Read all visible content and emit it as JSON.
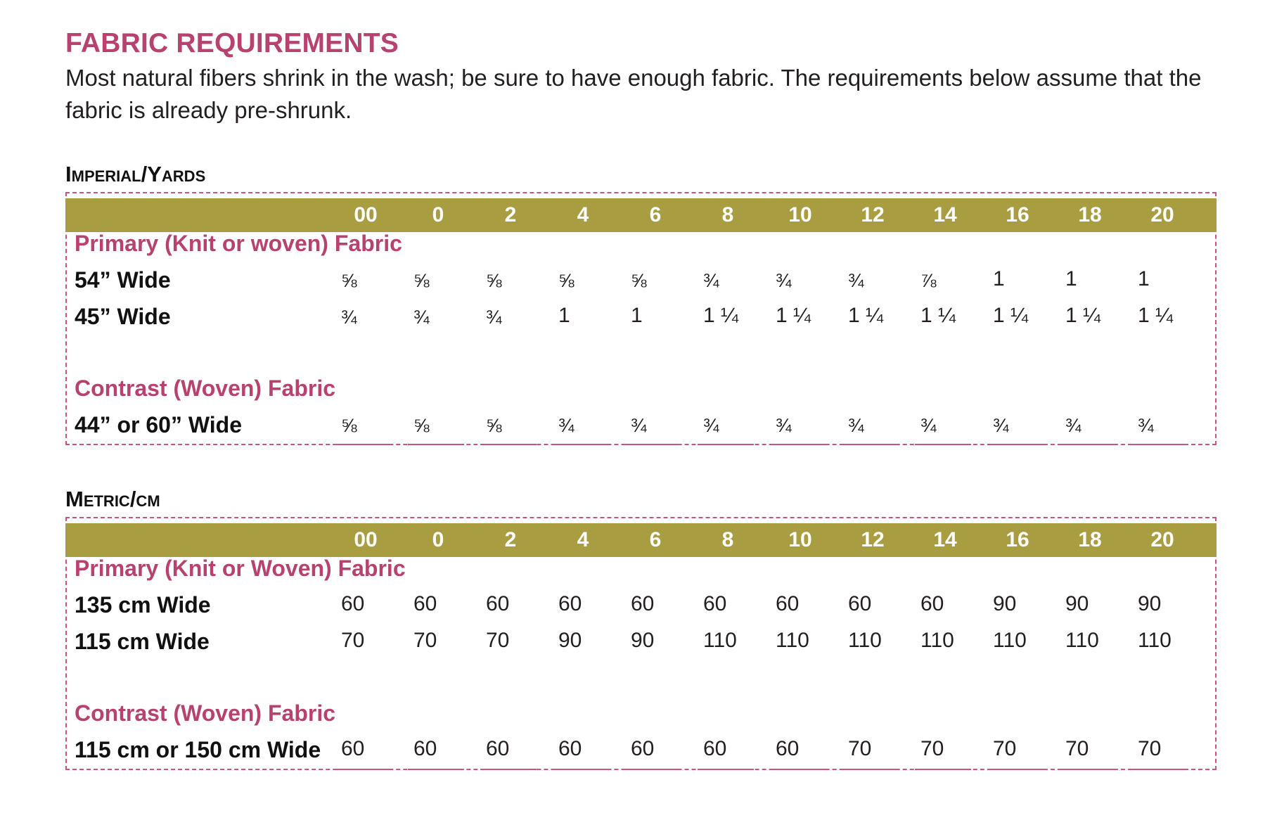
{
  "title": "FABRIC REQUIREMENTS",
  "intro": "Most natural fibers shrink in the wash; be sure to have enough fabric. The requirements below assume that the fabric is already pre-shrunk.",
  "imperial": {
    "heading": "Imperial/Yards",
    "sizes": [
      "00",
      "0",
      "2",
      "4",
      "6",
      "8",
      "10",
      "12",
      "14",
      "16",
      "18",
      "20"
    ],
    "primary_label": "Primary (Knit or woven) Fabric",
    "rows": [
      {
        "label": "54”  Wide",
        "values": [
          "⅝",
          "⅝",
          "⅝",
          "⅝",
          "⅝",
          "¾",
          "¾",
          "¾",
          "⅞",
          "1",
          "1",
          "1"
        ]
      },
      {
        "label": "45” Wide",
        "values": [
          "¾",
          "¾",
          "¾",
          "1",
          "1",
          "1 ¼",
          "1 ¼",
          "1 ¼",
          "1 ¼",
          "1 ¼",
          "1 ¼",
          "1 ¼"
        ]
      }
    ],
    "contrast_label": "Contrast (Woven) Fabric",
    "contrast_row": {
      "label": "44”  or  60”  Wide",
      "values": [
        "⅝",
        "⅝",
        "⅝",
        "¾",
        "¾",
        "¾",
        "¾",
        "¾",
        "¾",
        "¾",
        "¾",
        "¾"
      ]
    }
  },
  "metric": {
    "heading": "Metric/cm",
    "sizes": [
      "00",
      "0",
      "2",
      "4",
      "6",
      "8",
      "10",
      "12",
      "14",
      "16",
      "18",
      "20"
    ],
    "primary_label": "Primary (Knit or Woven) Fabric",
    "rows": [
      {
        "label": "135 cm  Wide",
        "values": [
          "60",
          "60",
          "60",
          "60",
          "60",
          "60",
          "60",
          "60",
          "60",
          "90",
          "90",
          "90"
        ]
      },
      {
        "label": "115 cm Wide",
        "values": [
          "70",
          "70",
          "70",
          "90",
          "90",
          "110",
          "110",
          "110",
          "110",
          "110",
          "110",
          "110"
        ]
      }
    ],
    "contrast_label": "Contrast (Woven) Fabric",
    "contrast_row": {
      "label": "115 cm or 150 cm Wide",
      "values": [
        "60",
        "60",
        "60",
        "60",
        "60",
        "60",
        "60",
        "70",
        "70",
        "70",
        "70",
        "70"
      ]
    }
  },
  "colors": {
    "title": "#b7416f",
    "band": "#a99d42",
    "dash": "#c9547e"
  }
}
